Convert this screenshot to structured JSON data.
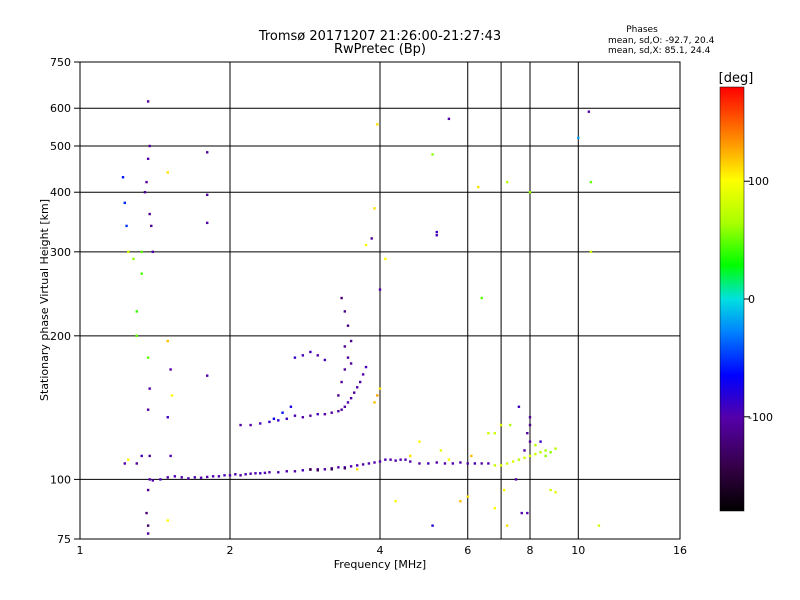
{
  "chart_data": {
    "type": "scatter",
    "title": "Tromsø 20171207 21:26:00-21:27:43",
    "subtitle": "RwPretec (Bp)",
    "xlabel": "Frequency [MHz]",
    "ylabel": "Stationary phase Virtual Height [km]",
    "x_scale": "log",
    "y_scale": "log",
    "xlim": [
      1,
      16
    ],
    "ylim": [
      75,
      750
    ],
    "x_ticks": [
      1,
      2,
      4,
      6,
      8,
      10,
      16
    ],
    "y_ticks": [
      75,
      100,
      200,
      300,
      400,
      500,
      600,
      750
    ],
    "grid": true,
    "phases_box": {
      "heading": "Phases",
      "line_o": "mean, sd,O: -92.7, 20.4",
      "line_x": "mean, sd,X:  85.1, 24.4"
    },
    "colorbar": {
      "unit": "[deg]",
      "ticks": [
        "100",
        "0",
        "-100"
      ],
      "tick_values": [
        100,
        0,
        -100
      ],
      "range": [
        -180,
        180
      ]
    },
    "points": [
      [
        1.38,
        100,
        -100
      ],
      [
        1.4,
        99.5,
        -100
      ],
      [
        1.45,
        100,
        -95
      ],
      [
        1.5,
        101,
        -100
      ],
      [
        1.55,
        101.5,
        -98
      ],
      [
        1.6,
        101,
        -100
      ],
      [
        1.65,
        100.5,
        -100
      ],
      [
        1.7,
        101,
        -95
      ],
      [
        1.75,
        100.8,
        -100
      ],
      [
        1.8,
        101.2,
        -100
      ],
      [
        1.85,
        101.5,
        -98
      ],
      [
        1.9,
        101.5,
        -100
      ],
      [
        1.95,
        102,
        -95
      ],
      [
        2.0,
        102,
        -100
      ],
      [
        2.05,
        102.5,
        -100
      ],
      [
        2.1,
        102,
        -100
      ],
      [
        2.15,
        102.5,
        -98
      ],
      [
        2.2,
        102.8,
        -100
      ],
      [
        2.25,
        103,
        -100
      ],
      [
        2.3,
        103,
        -95
      ],
      [
        2.35,
        103.2,
        -100
      ],
      [
        2.4,
        103.5,
        -100
      ],
      [
        2.5,
        103.5,
        -98
      ],
      [
        2.6,
        104,
        -100
      ],
      [
        2.7,
        104,
        -100
      ],
      [
        2.8,
        104.5,
        -95
      ],
      [
        2.9,
        104.8,
        -100
      ],
      [
        3.0,
        105,
        -100
      ],
      [
        3.1,
        105,
        -98
      ],
      [
        3.2,
        105.5,
        -100
      ],
      [
        3.3,
        106,
        -100
      ],
      [
        3.4,
        106,
        -95
      ],
      [
        3.5,
        106.5,
        -100
      ],
      [
        3.6,
        107,
        -100
      ],
      [
        3.7,
        107.5,
        -100
      ],
      [
        3.8,
        108,
        -98
      ],
      [
        3.9,
        108.5,
        -100
      ],
      [
        4.0,
        109,
        -100
      ],
      [
        4.1,
        110,
        -95
      ],
      [
        4.2,
        110,
        -100
      ],
      [
        4.3,
        109.5,
        -100
      ],
      [
        4.4,
        110,
        -100
      ],
      [
        4.5,
        110,
        -98
      ],
      [
        4.6,
        109,
        -100
      ],
      [
        4.8,
        108,
        -100
      ],
      [
        5.0,
        108,
        -95
      ],
      [
        5.2,
        108.5,
        -100
      ],
      [
        5.4,
        108,
        -100
      ],
      [
        5.6,
        108,
        -98
      ],
      [
        5.8,
        108.5,
        -100
      ],
      [
        6.0,
        108,
        -100
      ],
      [
        6.2,
        108,
        -95
      ],
      [
        6.4,
        108,
        -100
      ],
      [
        6.6,
        108,
        -100
      ],
      [
        2.9,
        105,
        -140
      ],
      [
        3.0,
        104.5,
        -135
      ],
      [
        3.2,
        105,
        -140
      ],
      [
        3.4,
        105.5,
        -130
      ],
      [
        6.8,
        107,
        80
      ],
      [
        7.0,
        107,
        90
      ],
      [
        7.2,
        108,
        80
      ],
      [
        7.4,
        109,
        85
      ],
      [
        7.6,
        110,
        70
      ],
      [
        7.8,
        111,
        80
      ],
      [
        8.0,
        112,
        75
      ],
      [
        8.2,
        113,
        80
      ],
      [
        8.4,
        114,
        70
      ],
      [
        8.6,
        115,
        65
      ],
      [
        8.8,
        114,
        60
      ],
      [
        9.0,
        116,
        70
      ],
      [
        2.1,
        130,
        -100
      ],
      [
        2.2,
        130,
        -100
      ],
      [
        2.3,
        131,
        -95
      ],
      [
        2.4,
        132,
        -90
      ],
      [
        2.5,
        133,
        -85
      ],
      [
        2.6,
        134,
        -90
      ],
      [
        2.7,
        136,
        -95
      ],
      [
        2.8,
        135,
        -100
      ],
      [
        2.9,
        136,
        -100
      ],
      [
        3.0,
        137,
        -95
      ],
      [
        3.1,
        137,
        -100
      ],
      [
        3.2,
        138,
        -100
      ],
      [
        3.3,
        139,
        -105
      ],
      [
        3.35,
        140,
        -110
      ],
      [
        3.4,
        142,
        -100
      ],
      [
        3.45,
        145,
        -100
      ],
      [
        3.5,
        148,
        -105
      ],
      [
        3.55,
        152,
        -110
      ],
      [
        3.6,
        156,
        -100
      ],
      [
        3.65,
        160,
        -105
      ],
      [
        3.7,
        166,
        -100
      ],
      [
        3.75,
        172,
        -95
      ],
      [
        2.45,
        134,
        -70
      ],
      [
        2.55,
        138,
        -60
      ],
      [
        2.65,
        142,
        -75
      ],
      [
        3.3,
        150,
        -115
      ],
      [
        3.35,
        160,
        -110
      ],
      [
        3.4,
        170,
        -105
      ],
      [
        3.45,
        180,
        -110
      ],
      [
        3.5,
        195,
        -115
      ],
      [
        3.45,
        210,
        -120
      ],
      [
        3.4,
        225,
        -115
      ],
      [
        3.35,
        240,
        -120
      ],
      [
        3.4,
        190,
        -110
      ],
      [
        3.5,
        175,
        -105
      ],
      [
        2.7,
        180,
        -90
      ],
      [
        2.8,
        182,
        -95
      ],
      [
        2.9,
        185,
        -90
      ],
      [
        3.0,
        182,
        -100
      ],
      [
        3.1,
        178,
        -95
      ],
      [
        3.9,
        145,
        120
      ],
      [
        3.95,
        150,
        130
      ],
      [
        4.0,
        155,
        110
      ],
      [
        1.37,
        620,
        -105
      ],
      [
        1.38,
        500,
        -110
      ],
      [
        1.37,
        470,
        -100
      ],
      [
        1.36,
        420,
        -105
      ],
      [
        1.35,
        400,
        -110
      ],
      [
        1.38,
        360,
        -115
      ],
      [
        1.39,
        340,
        -110
      ],
      [
        1.4,
        300,
        -100
      ],
      [
        1.22,
        430,
        -60
      ],
      [
        1.23,
        380,
        -55
      ],
      [
        1.24,
        340,
        -50
      ],
      [
        1.25,
        300,
        80
      ],
      [
        1.28,
        290,
        60
      ],
      [
        1.3,
        225,
        40
      ],
      [
        1.3,
        200,
        50
      ],
      [
        1.33,
        270,
        45
      ],
      [
        1.33,
        300,
        50
      ],
      [
        1.37,
        180,
        50
      ],
      [
        1.38,
        155,
        -100
      ],
      [
        1.37,
        140,
        -105
      ],
      [
        1.38,
        112,
        -110
      ],
      [
        1.37,
        95,
        -110
      ],
      [
        1.36,
        85,
        -120
      ],
      [
        1.37,
        80,
        -130
      ],
      [
        1.37,
        77,
        -110
      ],
      [
        1.5,
        440,
        110
      ],
      [
        1.5,
        195,
        120
      ],
      [
        1.52,
        170,
        -100
      ],
      [
        1.53,
        150,
        100
      ],
      [
        1.5,
        135,
        -90
      ],
      [
        1.52,
        112,
        -100
      ],
      [
        1.5,
        82,
        100
      ],
      [
        1.33,
        112,
        -95
      ],
      [
        1.3,
        108,
        -110
      ],
      [
        1.8,
        485,
        -110
      ],
      [
        1.8,
        395,
        -105
      ],
      [
        1.8,
        345,
        -100
      ],
      [
        1.8,
        165,
        -100
      ],
      [
        3.95,
        555,
        110
      ],
      [
        3.9,
        370,
        110
      ],
      [
        3.85,
        320,
        -110
      ],
      [
        4.0,
        250,
        -100
      ],
      [
        4.1,
        290,
        100
      ],
      [
        3.75,
        310,
        100
      ],
      [
        5.1,
        480,
        60
      ],
      [
        5.2,
        330,
        -90
      ],
      [
        5.2,
        325,
        -95
      ],
      [
        5.5,
        570,
        -100
      ],
      [
        6.3,
        410,
        110
      ],
      [
        6.4,
        240,
        50
      ],
      [
        7.2,
        420,
        70
      ],
      [
        8.0,
        400,
        60
      ],
      [
        10.0,
        520,
        -20
      ],
      [
        10.5,
        590,
        -100
      ],
      [
        10.6,
        420,
        50
      ],
      [
        10.6,
        300,
        80
      ],
      [
        11.0,
        80,
        80
      ],
      [
        8.0,
        130,
        -115
      ],
      [
        8.0,
        135,
        -110
      ],
      [
        7.9,
        125,
        -105
      ],
      [
        8.0,
        120,
        -110
      ],
      [
        7.8,
        115,
        -100
      ],
      [
        8.4,
        120,
        -90
      ],
      [
        8.2,
        118,
        70
      ],
      [
        8.6,
        112,
        60
      ],
      [
        6.8,
        125,
        80
      ],
      [
        7.0,
        130,
        90
      ],
      [
        7.3,
        130,
        70
      ],
      [
        6.6,
        125,
        80
      ],
      [
        4.6,
        112,
        110
      ],
      [
        4.8,
        120,
        100
      ],
      [
        5.3,
        115,
        90
      ],
      [
        5.5,
        110,
        100
      ],
      [
        6.1,
        112,
        120
      ],
      [
        7.6,
        142,
        -90
      ],
      [
        5.8,
        90,
        120
      ],
      [
        6.0,
        92,
        110
      ],
      [
        7.1,
        95,
        100
      ],
      [
        7.5,
        100,
        -100
      ],
      [
        7.7,
        85,
        -100
      ],
      [
        7.9,
        85,
        -100
      ],
      [
        8.8,
        95,
        80
      ],
      [
        9.0,
        94,
        90
      ],
      [
        7.2,
        80,
        110
      ],
      [
        5.1,
        80,
        -80
      ],
      [
        6.8,
        87,
        100
      ],
      [
        4.3,
        90,
        100
      ],
      [
        1.25,
        110,
        100
      ],
      [
        1.23,
        108,
        -100
      ],
      [
        3.6,
        105,
        110
      ]
    ]
  }
}
